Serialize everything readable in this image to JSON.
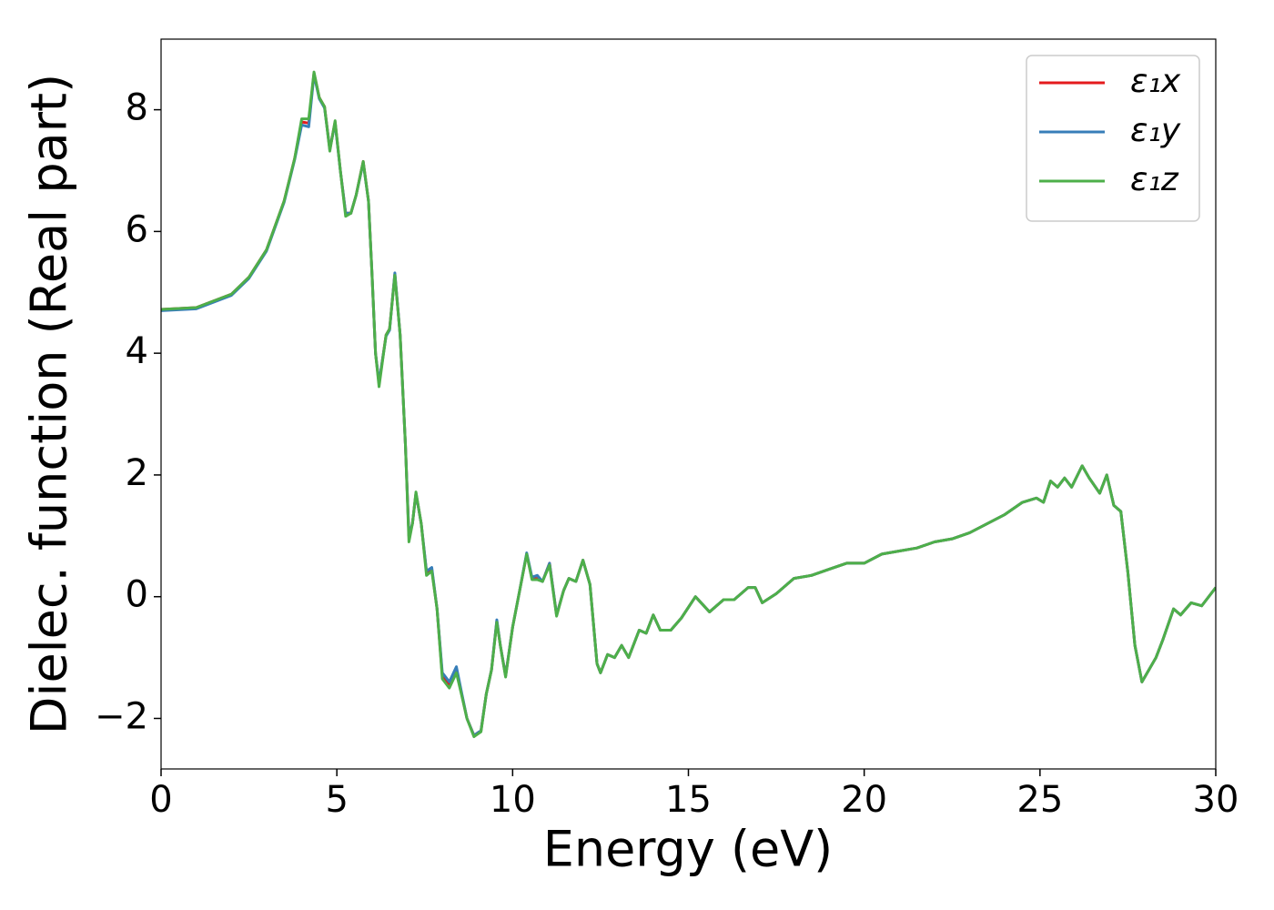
{
  "chart_data": {
    "type": "line",
    "xlabel": "Energy (eV)",
    "ylabel": "Dielec. function (Real part)",
    "xlim": [
      0,
      30
    ],
    "ylim": [
      -2.83,
      9.16
    ],
    "xticks": [
      0,
      5,
      10,
      15,
      20,
      25,
      30
    ],
    "yticks": [
      {
        "value": -2,
        "label": "−2"
      },
      0,
      2,
      4,
      6,
      8
    ],
    "legend": "upper right",
    "x": [
      0,
      1,
      2,
      2.5,
      3,
      3.5,
      3.8,
      4.0,
      4.2,
      4.35,
      4.5,
      4.65,
      4.8,
      4.95,
      5.1,
      5.25,
      5.4,
      5.55,
      5.75,
      5.9,
      6.0,
      6.1,
      6.2,
      6.4,
      6.5,
      6.65,
      6.8,
      6.95,
      7.05,
      7.15,
      7.25,
      7.4,
      7.55,
      7.7,
      7.85,
      8.0,
      8.2,
      8.4,
      8.55,
      8.7,
      8.9,
      9.1,
      9.25,
      9.4,
      9.55,
      9.65,
      9.8,
      10.0,
      10.2,
      10.4,
      10.55,
      10.7,
      10.85,
      11.05,
      11.25,
      11.45,
      11.6,
      11.8,
      12.0,
      12.2,
      12.4,
      12.5,
      12.7,
      12.9,
      13.1,
      13.3,
      13.6,
      13.8,
      14.0,
      14.2,
      14.5,
      14.8,
      15.2,
      15.6,
      16.0,
      16.3,
      16.7,
      16.9,
      17.1,
      17.5,
      18.0,
      18.5,
      19.0,
      19.5,
      20.0,
      20.5,
      21.0,
      21.5,
      22.0,
      22.5,
      23.0,
      23.5,
      24.0,
      24.5,
      24.9,
      25.1,
      25.3,
      25.5,
      25.7,
      25.9,
      26.2,
      26.4,
      26.7,
      26.9,
      27.1,
      27.3,
      27.5,
      27.7,
      27.9,
      28.1,
      28.3,
      28.5,
      28.8,
      29.0,
      29.3,
      29.6,
      30.0
    ],
    "series": [
      {
        "name": "ε₁x",
        "color": "#e41a1c",
        "values": [
          4.72,
          4.75,
          4.97,
          5.25,
          5.7,
          6.5,
          7.2,
          7.8,
          7.78,
          8.6,
          8.2,
          8.05,
          7.35,
          7.8,
          7.0,
          6.3,
          6.3,
          6.6,
          7.15,
          6.5,
          5.3,
          4.0,
          3.5,
          4.3,
          4.4,
          5.3,
          4.3,
          2.5,
          1.0,
          1.2,
          1.7,
          1.2,
          0.4,
          0.45,
          -0.2,
          -1.3,
          -1.45,
          -1.2,
          -1.6,
          -2.0,
          -2.28,
          -2.2,
          -1.6,
          -1.2,
          -0.4,
          -0.8,
          -1.3,
          -0.5,
          0.1,
          0.7,
          0.3,
          0.3,
          0.25,
          0.55,
          -0.3,
          0.1,
          0.3,
          0.25,
          0.6,
          0.2,
          -1.1,
          -1.25,
          -0.95,
          -1.0,
          -0.8,
          -1.0,
          -0.55,
          -0.6,
          -0.3,
          -0.55,
          -0.55,
          -0.35,
          0.0,
          -0.25,
          -0.05,
          -0.05,
          0.15,
          0.15,
          -0.1,
          0.05,
          0.3,
          0.35,
          0.45,
          0.55,
          0.55,
          0.7,
          0.75,
          0.8,
          0.9,
          0.95,
          1.05,
          1.2,
          1.35,
          1.55,
          1.62,
          1.55,
          1.9,
          1.8,
          1.95,
          1.8,
          2.15,
          1.95,
          1.7,
          2.0,
          1.5,
          1.4,
          0.4,
          -0.8,
          -1.4,
          -1.2,
          -1.0,
          -0.7,
          -0.2,
          -0.3,
          -0.1,
          -0.15,
          0.15
        ]
      },
      {
        "name": "ε₁y",
        "color": "#377eb8",
        "values": [
          4.7,
          4.73,
          4.95,
          5.23,
          5.68,
          6.48,
          7.18,
          7.75,
          7.72,
          8.58,
          8.18,
          8.03,
          7.35,
          7.78,
          7.0,
          6.3,
          6.3,
          6.6,
          7.13,
          6.5,
          5.3,
          4.0,
          3.52,
          4.28,
          4.38,
          5.32,
          4.3,
          2.5,
          1.0,
          1.2,
          1.7,
          1.2,
          0.42,
          0.48,
          -0.2,
          -1.25,
          -1.4,
          -1.15,
          -1.58,
          -2.0,
          -2.28,
          -2.2,
          -1.6,
          -1.2,
          -0.38,
          -0.8,
          -1.3,
          -0.5,
          0.1,
          0.72,
          0.32,
          0.35,
          0.25,
          0.55,
          -0.3,
          0.1,
          0.3,
          0.25,
          0.6,
          0.2,
          -1.1,
          -1.25,
          -0.95,
          -1.0,
          -0.8,
          -1.0,
          -0.55,
          -0.6,
          -0.3,
          -0.55,
          -0.55,
          -0.35,
          0.0,
          -0.25,
          -0.05,
          -0.05,
          0.15,
          0.15,
          -0.1,
          0.05,
          0.3,
          0.35,
          0.45,
          0.55,
          0.55,
          0.7,
          0.75,
          0.8,
          0.9,
          0.95,
          1.05,
          1.2,
          1.35,
          1.55,
          1.62,
          1.55,
          1.9,
          1.8,
          1.95,
          1.8,
          2.15,
          1.95,
          1.7,
          2.0,
          1.5,
          1.4,
          0.4,
          -0.8,
          -1.4,
          -1.2,
          -1.0,
          -0.7,
          -0.2,
          -0.3,
          -0.1,
          -0.15,
          0.15
        ]
      },
      {
        "name": "ε₁z",
        "color": "#4daf4a",
        "values": [
          4.72,
          4.75,
          4.97,
          5.25,
          5.7,
          6.5,
          7.2,
          7.85,
          7.85,
          8.62,
          8.2,
          8.05,
          7.32,
          7.82,
          7.0,
          6.25,
          6.3,
          6.6,
          7.15,
          6.5,
          5.3,
          4.0,
          3.45,
          4.3,
          4.4,
          5.28,
          4.3,
          2.5,
          0.9,
          1.2,
          1.72,
          1.2,
          0.35,
          0.42,
          -0.2,
          -1.35,
          -1.5,
          -1.25,
          -1.62,
          -2.0,
          -2.3,
          -2.22,
          -1.6,
          -1.2,
          -0.42,
          -0.8,
          -1.32,
          -0.5,
          0.1,
          0.7,
          0.28,
          0.28,
          0.25,
          0.52,
          -0.32,
          0.1,
          0.3,
          0.25,
          0.6,
          0.2,
          -1.1,
          -1.25,
          -0.95,
          -1.0,
          -0.8,
          -1.0,
          -0.55,
          -0.6,
          -0.3,
          -0.55,
          -0.55,
          -0.35,
          0.0,
          -0.25,
          -0.05,
          -0.05,
          0.15,
          0.15,
          -0.1,
          0.05,
          0.3,
          0.35,
          0.45,
          0.55,
          0.55,
          0.7,
          0.75,
          0.8,
          0.9,
          0.95,
          1.05,
          1.2,
          1.35,
          1.55,
          1.62,
          1.55,
          1.9,
          1.8,
          1.95,
          1.8,
          2.15,
          1.95,
          1.7,
          2.0,
          1.5,
          1.4,
          0.4,
          -0.8,
          -1.4,
          -1.2,
          -1.0,
          -0.7,
          -0.2,
          -0.3,
          -0.1,
          -0.15,
          0.15
        ]
      }
    ]
  }
}
